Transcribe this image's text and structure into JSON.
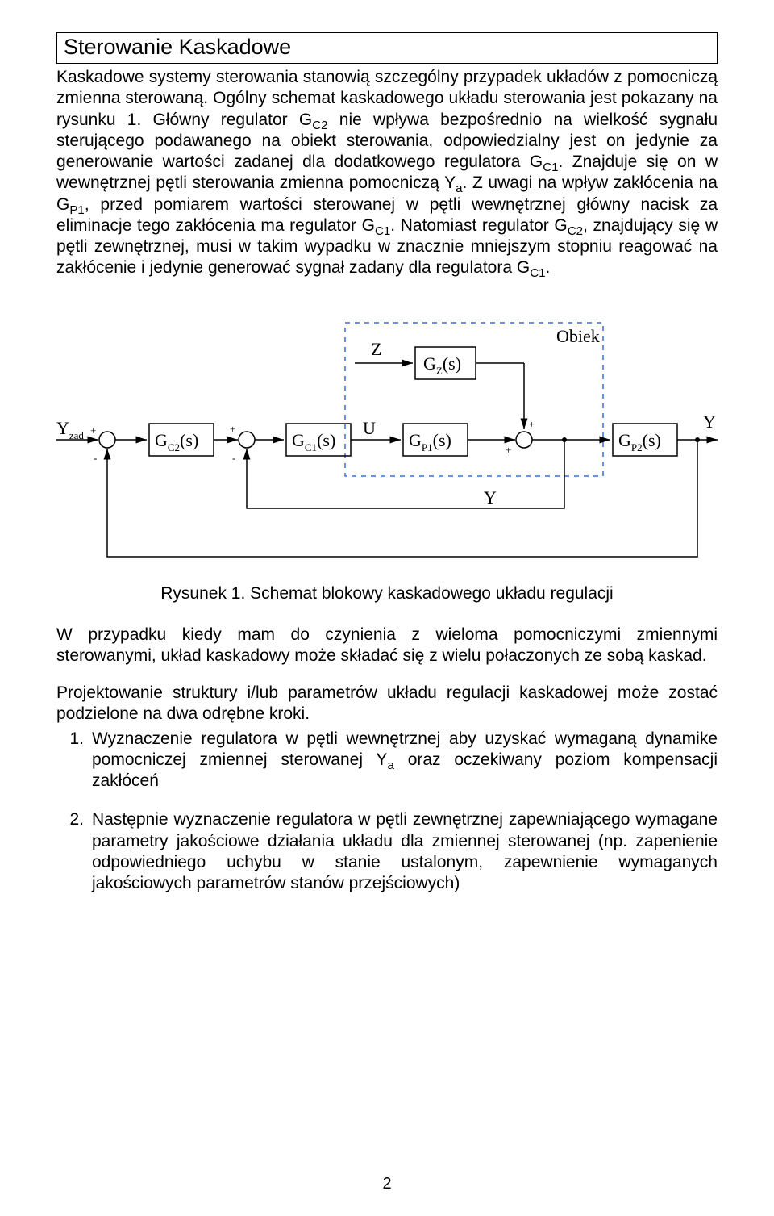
{
  "title": "Sterowanie Kaskadowe",
  "para1_html": "Kaskadowe systemy sterowania stanowią szczególny przypadek układów z pomocniczą zmienna sterowaną. Ogólny schemat kaskadowego układu sterowania jest pokazany na rysunku 1. Główny regulator G<span class=\"sub\">C2</span> nie wpływa bezpośrednio na wielkość sygnału sterującego podawanego na obiekt sterowania, odpowiedzialny jest on jedynie za generowanie wartości zadanej dla dodatkowego regulatora G<span class=\"sub\">C1</span>. Znajduje się on w wewnętrznej pętli sterowania zmienna pomocniczą Y<span class=\"sub\">a</span>. Z uwagi na wpływ zakłócenia na G<span class=\"sub\">P1</span>, przed pomiarem wartości sterowanej w pętli wewnętrznej główny nacisk za eliminacje tego zakłócenia ma regulator G<span class=\"sub\">C1</span>. Natomiast regulator G<span class=\"sub\">C2</span>, znajdujący się w pętli zewnętrznej, musi w takim wypadku w znacznie mniejszym stopniu reagować na zakłócenie i jedynie generować sygnał zadany dla regulatora G<span class=\"sub\">C1</span>.",
  "fig": {
    "caption": "Rysunek 1. Schemat blokowy kaskadowego układu regulacji",
    "labels": {
      "Yzad": "Y",
      "Yzad_sub": "zad",
      "Z": "Z",
      "U": "U",
      "Y": "Y",
      "Ya": "Y",
      "Obiek": "Obiek",
      "GC2": "G",
      "GC2s": "C2",
      "GC2p": "(s)",
      "GC1": "G",
      "GC1s": "C1",
      "GC1p": "(s)",
      "GP1": "G",
      "GP1s": "P1",
      "GP1p": "(s)",
      "GP2": "G",
      "GP2s": "P2",
      "GP2p": "(s)",
      "GZ": "G",
      "GZs": "Z",
      "GZp": "(s)",
      "plus": "+",
      "minus": "-"
    },
    "colors": {
      "line": "#000000",
      "dash": "#3a6fd8",
      "bg": "#ffffff"
    },
    "stroke_width": 1.5,
    "font_main": 22,
    "font_sub": 13
  },
  "para2": "W przypadku kiedy mam do czynienia z wieloma pomocniczymi zmiennymi sterowanymi, układ kaskadowy może składać się z wielu połaczonych ze sobą kaskad.",
  "para3": "Projektowanie struktury i/lub parametrów układu regulacji kaskadowej może zostać podzielone na dwa odrębne kroki.",
  "step1_html": "Wyznaczenie regulatora w pętli wewnętrznej aby uzyskać wymaganą dynamike pomocniczej zmiennej sterowanej Y<span class=\"sub\">a</span> oraz oczekiwany poziom kompensacji zakłóceń",
  "step2": "Następnie wyznaczenie regulatora w pętli zewnętrznej zapewniającego wymagane parametry jakościowe działania układu dla zmiennej sterowanej (np. zapenienie odpowiedniego uchybu w stanie ustalonym, zapewnienie wymaganych jakościowych parametrów stanów przejściowych)",
  "nums": {
    "n1": "1.",
    "n2": "2."
  },
  "page_number": "2"
}
